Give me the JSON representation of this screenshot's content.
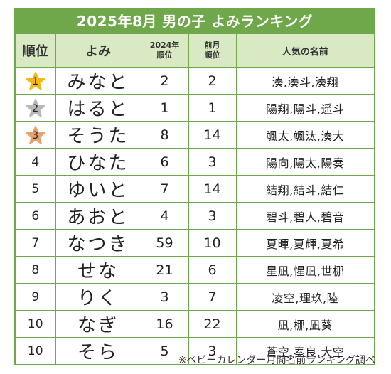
{
  "title": "2025年8月 男の子 よみランキング",
  "headers": {
    "rank": "順位",
    "yomi": "よみ",
    "rank_2024_line1": "2024年",
    "rank_2024_line2": "順位",
    "rank_prev_line1": "前月",
    "rank_prev_line2": "順位",
    "popular_names": "人気の名前"
  },
  "colors": {
    "accent": "#6fa84a",
    "header_bg": "#d8e9c4",
    "gold": "#f5b915",
    "silver": "#b8b8b8",
    "bronze": "#e8a06c"
  },
  "rows": [
    {
      "rank": "1",
      "yomi": "みなと",
      "rank_2024": "2",
      "rank_prev": "2",
      "names": "湊,湊斗,湊翔",
      "medal": "gold"
    },
    {
      "rank": "2",
      "yomi": "はると",
      "rank_2024": "1",
      "rank_prev": "1",
      "names": "陽翔,陽斗,遥斗",
      "medal": "silver"
    },
    {
      "rank": "3",
      "yomi": "そうた",
      "rank_2024": "8",
      "rank_prev": "14",
      "names": "颯太,颯汰,湊大",
      "medal": "bronze"
    },
    {
      "rank": "4",
      "yomi": "ひなた",
      "rank_2024": "6",
      "rank_prev": "3",
      "names": "陽向,陽太,陽奏"
    },
    {
      "rank": "5",
      "yomi": "ゆいと",
      "rank_2024": "7",
      "rank_prev": "14",
      "names": "結翔,結斗,結仁"
    },
    {
      "rank": "6",
      "yomi": "あおと",
      "rank_2024": "4",
      "rank_prev": "3",
      "names": "碧斗,碧人,碧音"
    },
    {
      "rank": "7",
      "yomi": "なつき",
      "rank_2024": "59",
      "rank_prev": "10",
      "names": "夏暉,夏輝,夏希"
    },
    {
      "rank": "8",
      "yomi": "せな",
      "rank_2024": "21",
      "rank_prev": "6",
      "names": "星凪,惺凪,世梛"
    },
    {
      "rank": "9",
      "yomi": "りく",
      "rank_2024": "3",
      "rank_prev": "7",
      "names": "凌空,理玖,陸"
    },
    {
      "rank": "10",
      "yomi": "なぎ",
      "rank_2024": "16",
      "rank_prev": "22",
      "names": "凪,梛,凪葵"
    },
    {
      "rank": "10",
      "yomi": "そら",
      "rank_2024": "5",
      "rank_prev": "3",
      "names": "蒼空,奏良,大空"
    }
  ],
  "footnote": "※ベビーカレンダー月間名前ランキング調べ"
}
